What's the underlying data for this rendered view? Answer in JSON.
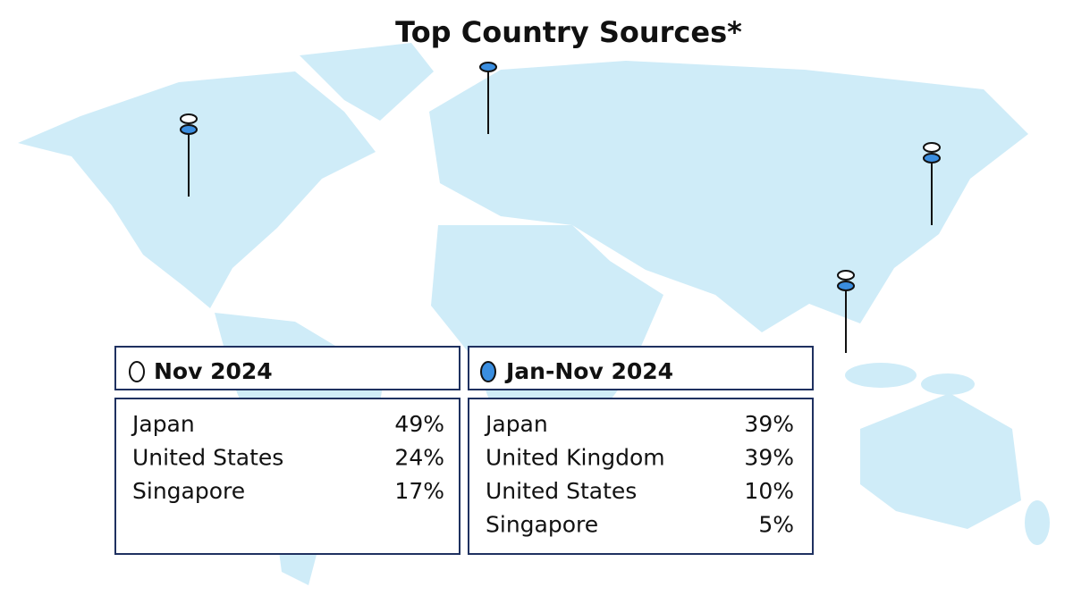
{
  "title": "Top Country Sources*",
  "panels": [
    {
      "header": "Nov 2024",
      "rows": [
        [
          "Japan",
          "49%"
        ],
        [
          "United States",
          "24%"
        ],
        [
          "Singapore",
          "17%"
        ]
      ]
    },
    {
      "header": "Jan-Nov 2024",
      "rows": [
        [
          "Japan",
          "39%"
        ],
        [
          "United Kingdom",
          "39%"
        ],
        [
          "United States",
          "10%"
        ],
        [
          "Singapore",
          "5%"
        ]
      ]
    }
  ]
}
